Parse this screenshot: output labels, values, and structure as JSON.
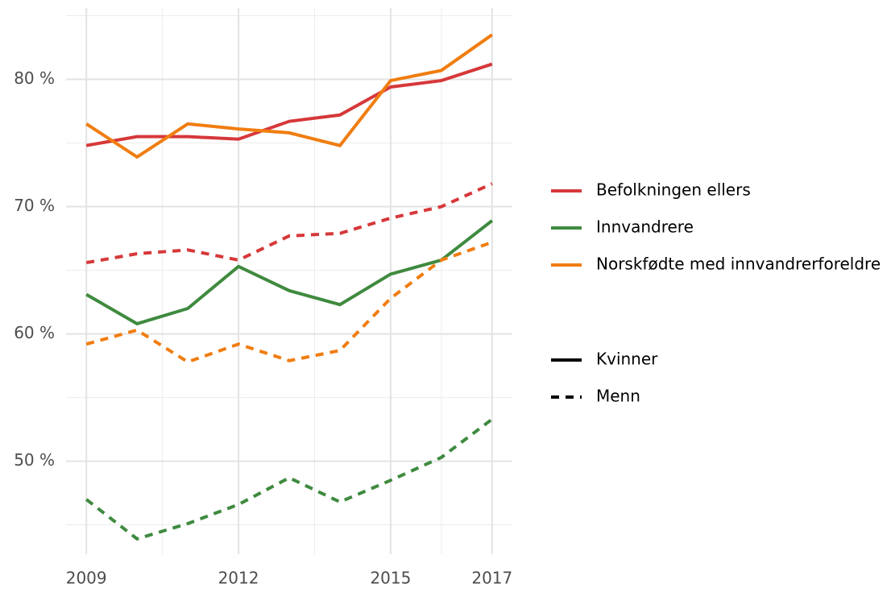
{
  "chart_data": {
    "type": "line",
    "x": [
      2009,
      2010,
      2011,
      2012,
      2013,
      2014,
      2015,
      2016,
      2017
    ],
    "xlim": [
      2008.6,
      2017.4
    ],
    "xticks": [
      2009,
      2012,
      2015,
      2017
    ],
    "x_minor_ticks": [
      2010.5,
      2013.5,
      2016
    ],
    "ylim": [
      42.7,
      85.6
    ],
    "yticks": [
      {
        "value": 50,
        "label": "50 %"
      },
      {
        "value": 60,
        "label": "60 %"
      },
      {
        "value": 70,
        "label": "70 %"
      },
      {
        "value": 80,
        "label": "80 %"
      }
    ],
    "y_minor_ticks": [
      45,
      55,
      65,
      75,
      85
    ],
    "grid": true,
    "legend": "right",
    "linetypes": [
      {
        "name": "Kvinner",
        "dash": "solid"
      },
      {
        "name": "Menn",
        "dash": "dashed"
      }
    ],
    "series": [
      {
        "name": "Befolkningen ellers",
        "color": "#d6383a",
        "values": [
          [
            74.8,
            75.5,
            75.5,
            75.3,
            76.7,
            77.2,
            79.4,
            79.9,
            81.2
          ],
          [
            65.6,
            66.3,
            66.6,
            65.8,
            67.7,
            67.9,
            69.1,
            70.0,
            71.8
          ]
        ]
      },
      {
        "name": "Innvandrere",
        "color": "#3f8a3f",
        "values": [
          [
            63.1,
            60.8,
            62.0,
            65.3,
            63.4,
            62.3,
            64.7,
            65.8,
            68.9
          ],
          [
            47.0,
            43.9,
            45.1,
            46.6,
            48.7,
            46.8,
            48.5,
            50.3,
            53.3
          ]
        ]
      },
      {
        "name": "Norskfødte med innvandrerforeldre",
        "color": "#f07d10",
        "values": [
          [
            76.5,
            73.9,
            76.5,
            76.1,
            75.8,
            74.8,
            79.9,
            80.7,
            83.5
          ],
          [
            59.2,
            60.3,
            57.8,
            59.2,
            57.9,
            58.7,
            62.8,
            65.8,
            67.2
          ]
        ]
      }
    ]
  }
}
